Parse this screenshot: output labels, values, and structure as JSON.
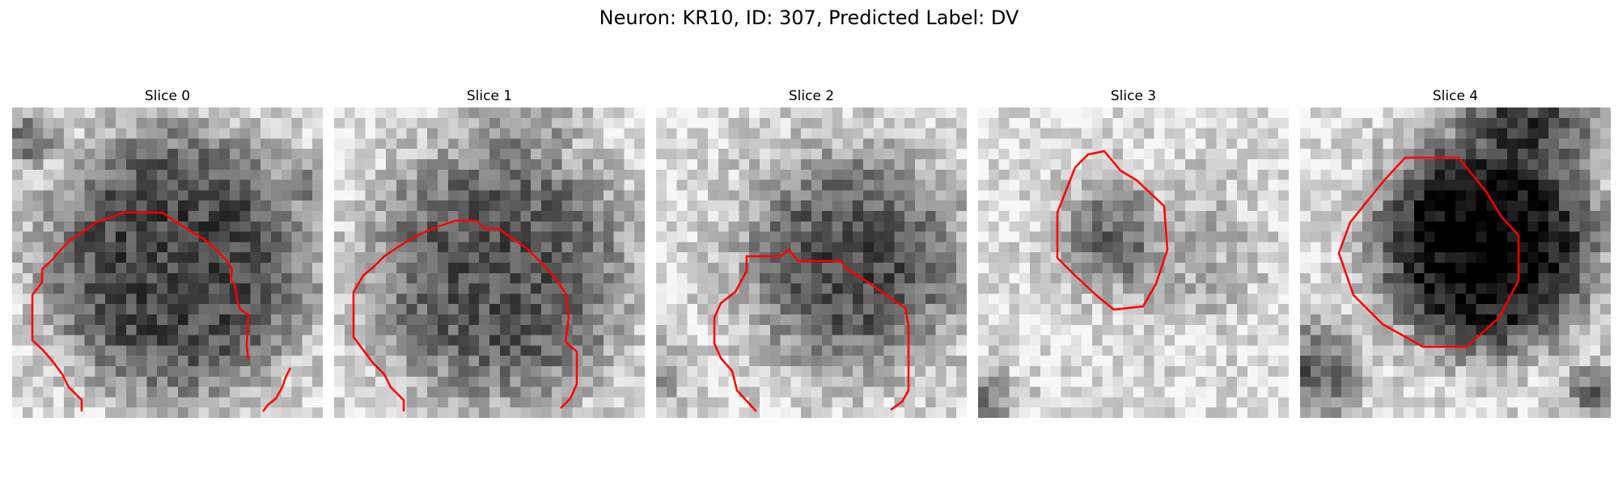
{
  "figure": {
    "title": "Neuron: KR10, ID: 307, Predicted Label: DV",
    "contour_color": "#ff0000",
    "colormap": "grayscale (dark = high intensity)",
    "panels": [
      {
        "title": "Slice 0",
        "image": "grayscale-patch-slice-0",
        "blob": "large dark round soma, open at bottom"
      },
      {
        "title": "Slice 1",
        "image": "grayscale-patch-slice-1",
        "blob": "large dark round soma, open at bottom"
      },
      {
        "title": "Slice 2",
        "image": "grayscale-patch-slice-2",
        "blob": "dark soma shifted right, open at bottom"
      },
      {
        "title": "Slice 3",
        "image": "grayscale-patch-slice-3",
        "blob": "small dark soma, closed contour"
      },
      {
        "title": "Slice 4",
        "image": "grayscale-patch-slice-4",
        "blob": "very dark soma, closed contour"
      }
    ]
  }
}
